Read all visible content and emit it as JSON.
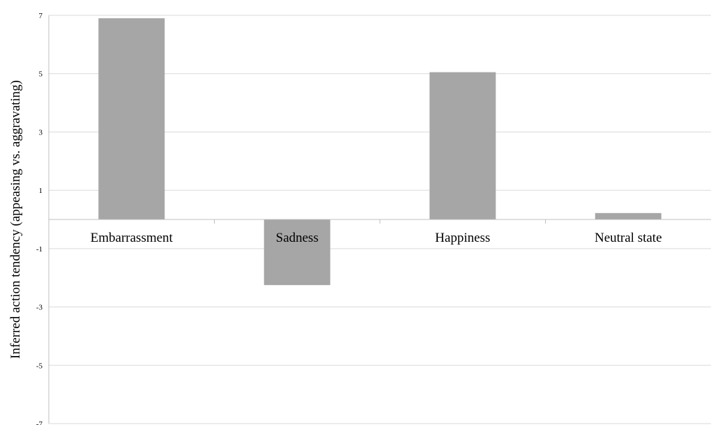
{
  "chart_data": {
    "type": "bar",
    "title": "",
    "xlabel": "",
    "ylabel": "Inferred action tendency (appeasing vs. aggravating)",
    "categories": [
      "Embarrassment",
      "Sadness",
      "Happiness",
      "Neutral state"
    ],
    "values": [
      6.9,
      -2.25,
      5.05,
      0.22
    ],
    "ylim": [
      -7,
      7
    ],
    "yticks": [
      7,
      5,
      3,
      1,
      -1,
      -3,
      -5,
      -7
    ],
    "grid": true,
    "legend": "none",
    "bar_color": "#a6a6a6"
  }
}
